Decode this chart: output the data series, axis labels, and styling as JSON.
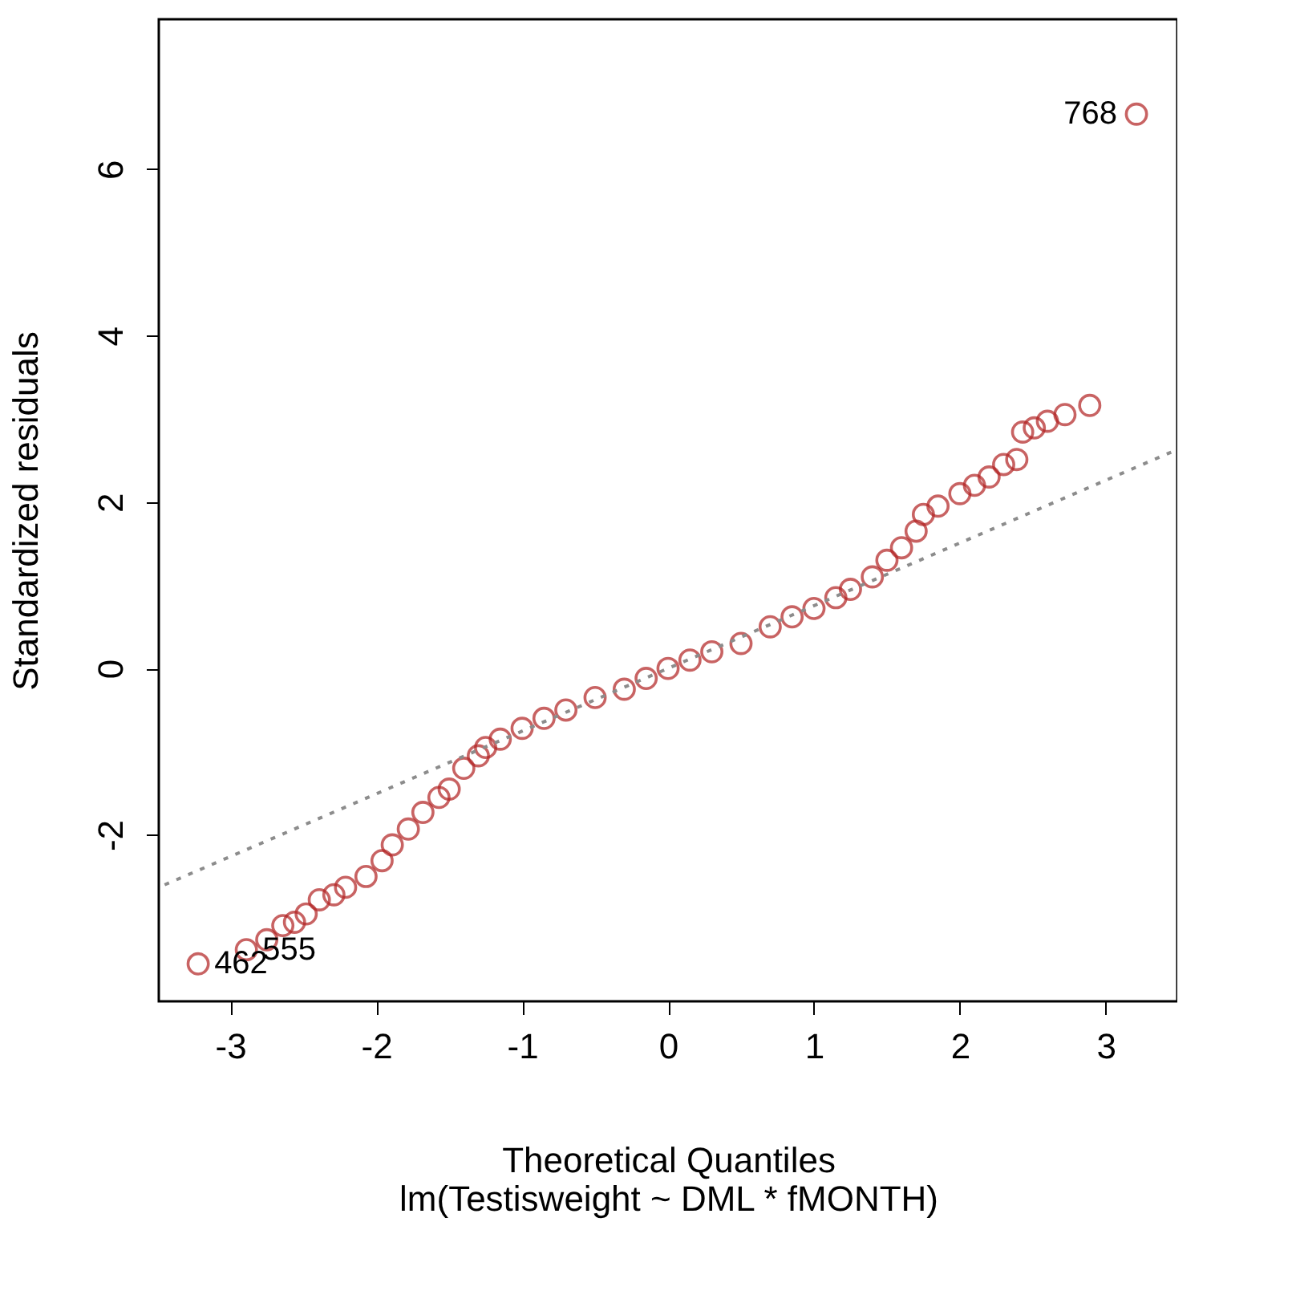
{
  "chart_data": {
    "type": "scatter",
    "xlabel": "Theoretical Quantiles",
    "ylabel": "Standardized residuals",
    "annotations": [
      "lm(Testisweight ~ DML * fMONTH)",
      {
        "text": "768",
        "x": 3.21,
        "y": 6.66
      },
      {
        "text": "462",
        "x": -3.22,
        "y": -3.55
      },
      {
        "text": "555",
        "x": -2.89,
        "y": -3.38
      }
    ],
    "series": [
      {
        "color": "#b22222",
        "marker": "circle",
        "x": [
          -3.22,
          -2.89,
          -2.75,
          -2.64,
          -2.56,
          -2.48,
          -2.39,
          -2.29,
          -2.21,
          -2.07,
          -1.96,
          -1.89,
          -1.78,
          -1.68,
          -1.57,
          -1.5,
          -1.4,
          -1.3,
          -1.25,
          -1.15,
          -1.0,
          -0.85,
          -0.7,
          -0.5,
          -0.3,
          -0.15,
          0.0,
          0.15,
          0.3,
          0.5,
          0.7,
          0.85,
          1.0,
          1.15,
          1.25,
          1.4,
          1.5,
          1.6,
          1.7,
          1.75,
          1.85,
          2.0,
          2.1,
          2.2,
          2.3,
          2.39,
          2.43,
          2.51,
          2.6,
          2.72,
          2.89,
          3.21
        ],
        "values": [
          -3.55,
          -3.38,
          -3.26,
          -3.09,
          -3.05,
          -2.95,
          -2.78,
          -2.72,
          -2.63,
          -2.5,
          -2.31,
          -2.12,
          -1.93,
          -1.73,
          -1.55,
          -1.45,
          -1.2,
          -1.05,
          -0.95,
          -0.85,
          -0.72,
          -0.6,
          -0.5,
          -0.35,
          -0.25,
          -0.12,
          0.0,
          0.1,
          0.2,
          0.3,
          0.5,
          0.62,
          0.72,
          0.85,
          0.95,
          1.1,
          1.3,
          1.45,
          1.65,
          1.85,
          1.95,
          2.1,
          2.2,
          2.3,
          2.45,
          2.51,
          2.84,
          2.89,
          2.97,
          3.05,
          3.16,
          6.66
        ]
      },
      {
        "type": "line",
        "color": "#8c8c8c",
        "line_style": "dotted",
        "x": [
          -3.45,
          3.45
        ],
        "values": [
          -2.6,
          2.6
        ]
      }
    ],
    "xlim": [
      -3.49,
      3.49
    ],
    "ylim": [
      -4.0,
      7.8
    ],
    "xticks": [
      -3,
      -2,
      -1,
      0,
      1,
      2,
      3
    ],
    "yticks": [
      -2,
      0,
      2,
      4,
      6
    ],
    "grid": false
  }
}
